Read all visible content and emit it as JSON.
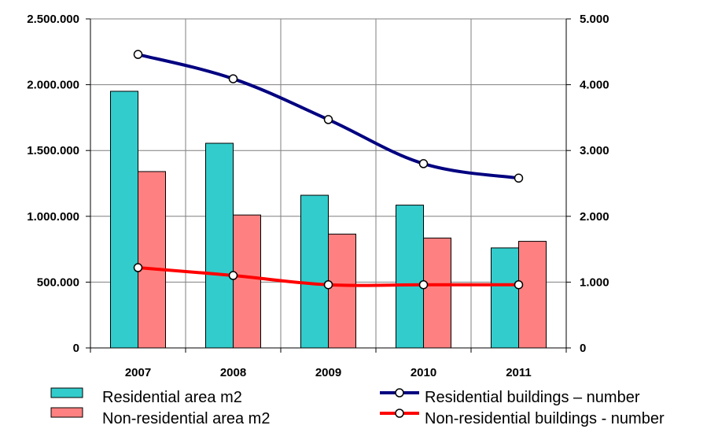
{
  "chart_data": {
    "type": "bar",
    "categories": [
      "2007",
      "2008",
      "2009",
      "2010",
      "2011"
    ],
    "series": [
      {
        "name": "Residential area m2",
        "kind": "bar",
        "axis": "left",
        "color": "#33cccc",
        "values": [
          1950000,
          1555000,
          1160000,
          1085000,
          760000
        ]
      },
      {
        "name": "Non-residential area m2",
        "kind": "bar",
        "axis": "left",
        "color": "#ff8080",
        "values": [
          1340000,
          1010000,
          865000,
          835000,
          810000
        ]
      },
      {
        "name": "Residential buildings – number",
        "kind": "line",
        "axis": "right",
        "color": "#000080",
        "values": [
          4460,
          4090,
          3470,
          2800,
          2580
        ]
      },
      {
        "name": "Non-residential buildings - number",
        "kind": "line",
        "axis": "right",
        "color": "#ff0000",
        "values": [
          1220,
          1100,
          960,
          960,
          960
        ]
      }
    ],
    "y_left": {
      "lim": [
        0,
        2500000
      ],
      "ticks": [
        "0",
        "500.000",
        "1.000.000",
        "1.500.000",
        "2.000.000",
        "2.500.000"
      ]
    },
    "y_right": {
      "lim": [
        0,
        5000
      ],
      "ticks": [
        "0",
        "1.000",
        "2.000",
        "3.000",
        "4.000",
        "5.000"
      ]
    },
    "grid": true,
    "legend": "bottom"
  }
}
